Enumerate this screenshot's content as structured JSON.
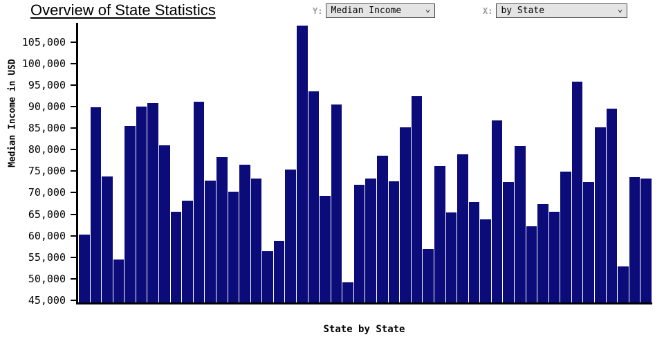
{
  "title": "Overview of State Statistics",
  "controls": {
    "y_label": "Y:",
    "y_value": "Median Income",
    "x_label": "X:",
    "x_value": "by State"
  },
  "chart_data": {
    "type": "bar",
    "title": "Overview of State Statistics",
    "ylabel": "Median Income in USD",
    "xlabel": "State by State",
    "ylim": [
      44000,
      109500
    ],
    "y_ticks": [
      45000,
      50000,
      55000,
      60000,
      65000,
      70000,
      75000,
      80000,
      85000,
      90000,
      95000,
      100000,
      105000
    ],
    "grid": false,
    "legend": "none",
    "bar_color": "#0b0b7a",
    "values": [
      59900,
      89700,
      73500,
      54000,
      85300,
      89900,
      90700,
      80800,
      65300,
      67800,
      91000,
      72500,
      78100,
      70000,
      76300,
      73000,
      56000,
      58400,
      75200,
      108800,
      93500,
      69000,
      90400,
      48700,
      71500,
      73000,
      78300,
      72300,
      85000,
      92300,
      56500,
      76000,
      65000,
      78700,
      67500,
      63400,
      86700,
      72200,
      80600,
      61800,
      67100,
      65300,
      74700,
      95800,
      72200,
      85100,
      89400,
      52500,
      73400,
      73000
    ]
  }
}
